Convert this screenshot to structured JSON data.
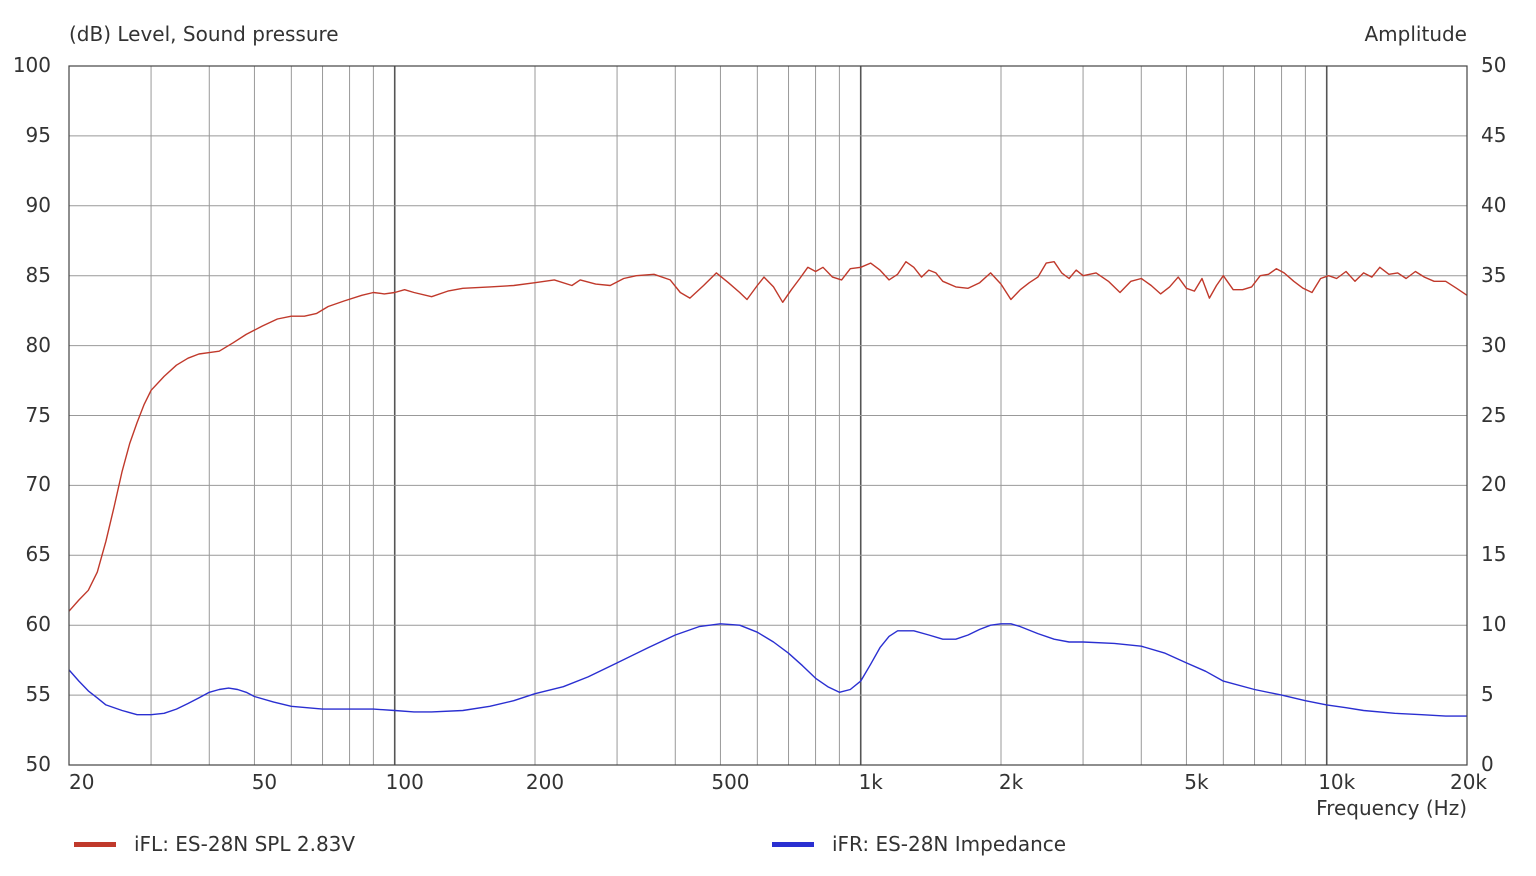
{
  "chart_data": {
    "type": "line",
    "title": "",
    "left_axis_label": "(dB)  Level, Sound pressure",
    "right_axis_label": "Amplitude",
    "xlabel": "Frequency  (Hz)",
    "x_scale": "log",
    "xlim": [
      20,
      20000
    ],
    "ylim_left": [
      50,
      100
    ],
    "ylim_right": [
      0,
      50
    ],
    "grid": true,
    "x_ticks": [
      {
        "value": 20,
        "label": "20"
      },
      {
        "value": 50,
        "label": "50"
      },
      {
        "value": 100,
        "label": "100"
      },
      {
        "value": 200,
        "label": "200"
      },
      {
        "value": 500,
        "label": "500"
      },
      {
        "value": 1000,
        "label": "1k"
      },
      {
        "value": 2000,
        "label": "2k"
      },
      {
        "value": 5000,
        "label": "5k"
      },
      {
        "value": 10000,
        "label": "10k"
      },
      {
        "value": 20000,
        "label": "20k"
      }
    ],
    "y_ticks_left": [
      "100",
      "95",
      "90",
      "85",
      "80",
      "75",
      "70",
      "65",
      "60",
      "55",
      "50"
    ],
    "y_ticks_right": [
      "50",
      "45",
      "40",
      "35",
      "30",
      "25",
      "20",
      "15",
      "10",
      "5",
      "0"
    ],
    "series": [
      {
        "name": "iFL: ES-28N SPL 2.83V",
        "color": "#c0392b",
        "axis": "left",
        "points": [
          [
            20,
            61
          ],
          [
            21,
            61.8
          ],
          [
            22,
            62.5
          ],
          [
            23,
            63.8
          ],
          [
            24,
            66
          ],
          [
            25,
            68.5
          ],
          [
            26,
            71
          ],
          [
            27,
            73
          ],
          [
            28,
            74.5
          ],
          [
            29,
            75.8
          ],
          [
            30,
            76.8
          ],
          [
            32,
            77.8
          ],
          [
            34,
            78.6
          ],
          [
            36,
            79.1
          ],
          [
            38,
            79.4
          ],
          [
            40,
            79.5
          ],
          [
            42,
            79.6
          ],
          [
            45,
            80.2
          ],
          [
            48,
            80.8
          ],
          [
            52,
            81.4
          ],
          [
            56,
            81.9
          ],
          [
            60,
            82.1
          ],
          [
            64,
            82.1
          ],
          [
            68,
            82.3
          ],
          [
            72,
            82.8
          ],
          [
            78,
            83.2
          ],
          [
            85,
            83.6
          ],
          [
            90,
            83.8
          ],
          [
            95,
            83.7
          ],
          [
            100,
            83.8
          ],
          [
            105,
            84
          ],
          [
            110,
            83.8
          ],
          [
            120,
            83.5
          ],
          [
            130,
            83.9
          ],
          [
            140,
            84.1
          ],
          [
            160,
            84.2
          ],
          [
            180,
            84.3
          ],
          [
            200,
            84.5
          ],
          [
            220,
            84.7
          ],
          [
            240,
            84.3
          ],
          [
            250,
            84.7
          ],
          [
            270,
            84.4
          ],
          [
            290,
            84.3
          ],
          [
            310,
            84.8
          ],
          [
            330,
            85
          ],
          [
            360,
            85.1
          ],
          [
            390,
            84.7
          ],
          [
            410,
            83.8
          ],
          [
            430,
            83.4
          ],
          [
            460,
            84.3
          ],
          [
            490,
            85.2
          ],
          [
            520,
            84.5
          ],
          [
            550,
            83.8
          ],
          [
            570,
            83.3
          ],
          [
            600,
            84.3
          ],
          [
            620,
            84.9
          ],
          [
            650,
            84.2
          ],
          [
            680,
            83.1
          ],
          [
            710,
            84
          ],
          [
            740,
            84.8
          ],
          [
            770,
            85.6
          ],
          [
            800,
            85.3
          ],
          [
            830,
            85.6
          ],
          [
            870,
            84.9
          ],
          [
            910,
            84.7
          ],
          [
            950,
            85.5
          ],
          [
            1000,
            85.6
          ],
          [
            1050,
            85.9
          ],
          [
            1100,
            85.4
          ],
          [
            1150,
            84.7
          ],
          [
            1200,
            85.1
          ],
          [
            1250,
            86
          ],
          [
            1300,
            85.6
          ],
          [
            1350,
            84.9
          ],
          [
            1400,
            85.4
          ],
          [
            1450,
            85.2
          ],
          [
            1500,
            84.6
          ],
          [
            1600,
            84.2
          ],
          [
            1700,
            84.1
          ],
          [
            1800,
            84.5
          ],
          [
            1900,
            85.2
          ],
          [
            2000,
            84.4
          ],
          [
            2100,
            83.3
          ],
          [
            2200,
            84
          ],
          [
            2300,
            84.5
          ],
          [
            2400,
            84.9
          ],
          [
            2500,
            85.9
          ],
          [
            2600,
            86
          ],
          [
            2700,
            85.2
          ],
          [
            2800,
            84.8
          ],
          [
            2900,
            85.4
          ],
          [
            3000,
            85
          ],
          [
            3200,
            85.2
          ],
          [
            3400,
            84.6
          ],
          [
            3600,
            83.8
          ],
          [
            3800,
            84.6
          ],
          [
            4000,
            84.8
          ],
          [
            4200,
            84.3
          ],
          [
            4400,
            83.7
          ],
          [
            4600,
            84.2
          ],
          [
            4800,
            84.9
          ],
          [
            5000,
            84.1
          ],
          [
            5200,
            83.9
          ],
          [
            5400,
            84.8
          ],
          [
            5600,
            83.4
          ],
          [
            5800,
            84.3
          ],
          [
            6000,
            85
          ],
          [
            6300,
            84
          ],
          [
            6600,
            84
          ],
          [
            6900,
            84.2
          ],
          [
            7200,
            85
          ],
          [
            7500,
            85.1
          ],
          [
            7800,
            85.5
          ],
          [
            8100,
            85.2
          ],
          [
            8500,
            84.6
          ],
          [
            8900,
            84.1
          ],
          [
            9300,
            83.8
          ],
          [
            9700,
            84.8
          ],
          [
            10100,
            85
          ],
          [
            10500,
            84.8
          ],
          [
            11000,
            85.3
          ],
          [
            11500,
            84.6
          ],
          [
            12000,
            85.2
          ],
          [
            12500,
            84.9
          ],
          [
            13000,
            85.6
          ],
          [
            13600,
            85.1
          ],
          [
            14200,
            85.2
          ],
          [
            14800,
            84.8
          ],
          [
            15500,
            85.3
          ],
          [
            16200,
            84.9
          ],
          [
            17000,
            84.6
          ],
          [
            18000,
            84.6
          ],
          [
            19000,
            84.1
          ],
          [
            20000,
            83.6
          ]
        ]
      },
      {
        "name": "iFR: ES-28N Impedance",
        "color": "#2a2fd1",
        "axis": "right",
        "points": [
          [
            20,
            6.8
          ],
          [
            21,
            6
          ],
          [
            22,
            5.3
          ],
          [
            23,
            4.8
          ],
          [
            24,
            4.3
          ],
          [
            26,
            3.9
          ],
          [
            28,
            3.6
          ],
          [
            30,
            3.6
          ],
          [
            32,
            3.7
          ],
          [
            34,
            4
          ],
          [
            36,
            4.4
          ],
          [
            38,
            4.8
          ],
          [
            40,
            5.2
          ],
          [
            42,
            5.4
          ],
          [
            44,
            5.5
          ],
          [
            46,
            5.4
          ],
          [
            48,
            5.2
          ],
          [
            50,
            4.9
          ],
          [
            55,
            4.5
          ],
          [
            60,
            4.2
          ],
          [
            70,
            4
          ],
          [
            80,
            4
          ],
          [
            90,
            4
          ],
          [
            100,
            3.9
          ],
          [
            110,
            3.8
          ],
          [
            120,
            3.8
          ],
          [
            140,
            3.9
          ],
          [
            160,
            4.2
          ],
          [
            180,
            4.6
          ],
          [
            200,
            5.1
          ],
          [
            230,
            5.6
          ],
          [
            260,
            6.3
          ],
          [
            300,
            7.3
          ],
          [
            350,
            8.4
          ],
          [
            400,
            9.3
          ],
          [
            450,
            9.9
          ],
          [
            500,
            10.1
          ],
          [
            550,
            10
          ],
          [
            600,
            9.5
          ],
          [
            650,
            8.8
          ],
          [
            700,
            8
          ],
          [
            750,
            7.1
          ],
          [
            800,
            6.2
          ],
          [
            850,
            5.6
          ],
          [
            900,
            5.2
          ],
          [
            950,
            5.4
          ],
          [
            1000,
            6
          ],
          [
            1050,
            7.2
          ],
          [
            1100,
            8.4
          ],
          [
            1150,
            9.2
          ],
          [
            1200,
            9.6
          ],
          [
            1300,
            9.6
          ],
          [
            1400,
            9.3
          ],
          [
            1500,
            9
          ],
          [
            1600,
            9
          ],
          [
            1700,
            9.3
          ],
          [
            1800,
            9.7
          ],
          [
            1900,
            10
          ],
          [
            2000,
            10.1
          ],
          [
            2100,
            10.1
          ],
          [
            2200,
            9.9
          ],
          [
            2400,
            9.4
          ],
          [
            2600,
            9
          ],
          [
            2800,
            8.8
          ],
          [
            3000,
            8.8
          ],
          [
            3500,
            8.7
          ],
          [
            4000,
            8.5
          ],
          [
            4500,
            8
          ],
          [
            5000,
            7.3
          ],
          [
            5500,
            6.7
          ],
          [
            6000,
            6
          ],
          [
            7000,
            5.4
          ],
          [
            8000,
            5
          ],
          [
            9000,
            4.6
          ],
          [
            10000,
            4.3
          ],
          [
            11000,
            4.1
          ],
          [
            12000,
            3.9
          ],
          [
            14000,
            3.7
          ],
          [
            16000,
            3.6
          ],
          [
            18000,
            3.5
          ],
          [
            20000,
            3.5
          ]
        ]
      }
    ]
  }
}
